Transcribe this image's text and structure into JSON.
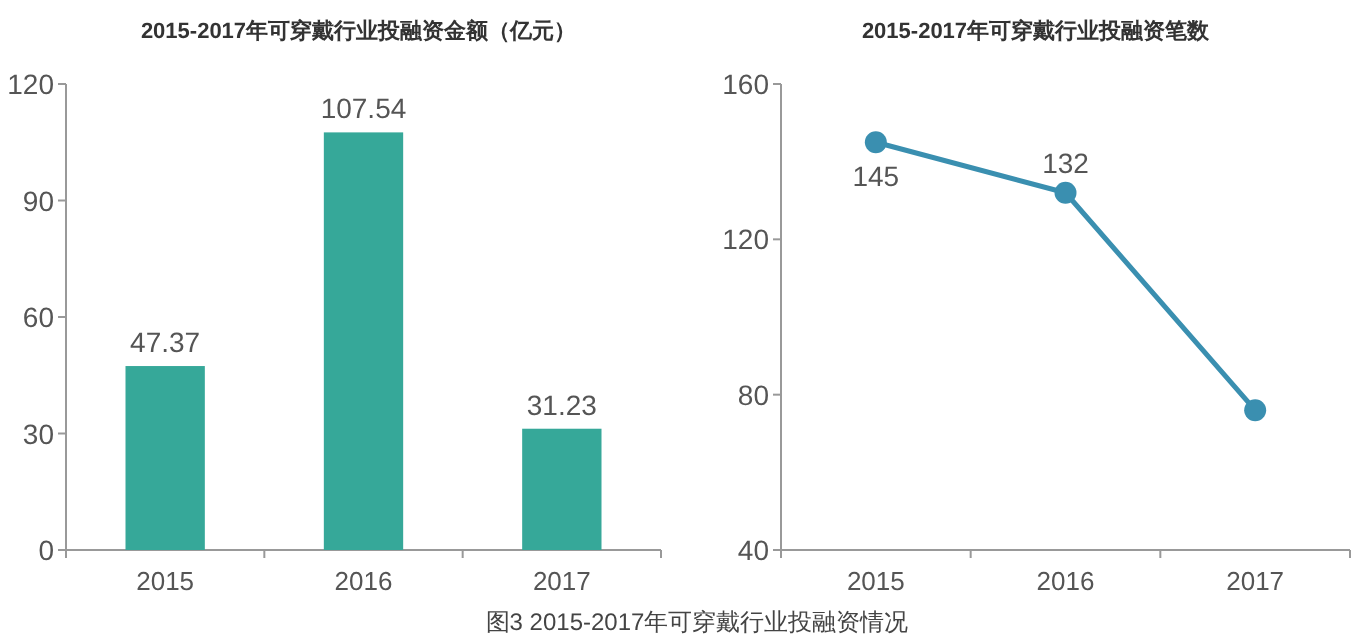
{
  "chart_data": [
    {
      "type": "bar",
      "title": "2015-2017年可穿戴行业投融资金额（亿元）",
      "categories": [
        "2015",
        "2016",
        "2017"
      ],
      "values": [
        47.37,
        107.54,
        31.23
      ],
      "color": "#36a899",
      "ylim": [
        0,
        120
      ],
      "yticks": [
        0,
        30,
        60,
        90,
        120
      ],
      "data_labels": true,
      "annotations": [
        "图3  2015-2017年可穿戴行业投融资情况"
      ]
    },
    {
      "type": "line",
      "title": "2015-2017年可穿戴行业投融资笔数",
      "categories": [
        "2015",
        "2016",
        "2017"
      ],
      "values": [
        145,
        132,
        76
      ],
      "value_labels": [
        "145",
        "132",
        null
      ],
      "color": "#3a8fb0",
      "marker": "circle",
      "ylim": [
        40,
        160
      ],
      "yticks": [
        40,
        80,
        120,
        160
      ]
    }
  ]
}
